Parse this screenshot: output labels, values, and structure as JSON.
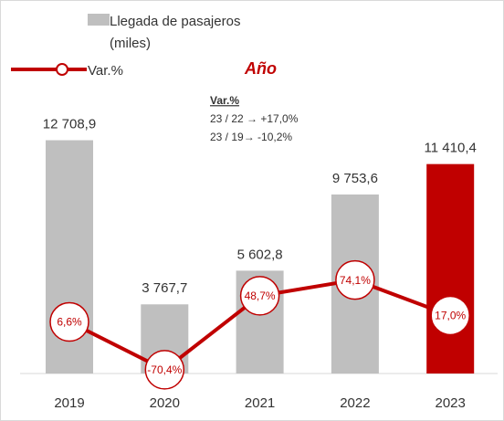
{
  "chart_data": {
    "type": "bar",
    "subtitle": "Año",
    "categories": [
      "2019",
      "2020",
      "2021",
      "2022",
      "2023"
    ],
    "series": [
      {
        "name": "Llegada de pasajeros (miles)",
        "type": "bar",
        "color": "#bfbfbf",
        "colors": [
          "#bfbfbf",
          "#bfbfbf",
          "#bfbfbf",
          "#bfbfbf",
          "#c00000"
        ],
        "values": [
          12708.9,
          3767.7,
          5602.8,
          9753.6,
          11410.4
        ],
        "value_labels": [
          "12 708,9",
          "3 767,7",
          "5 602,8",
          "9 753,6",
          "11 410,4"
        ]
      },
      {
        "name": "Var.%",
        "type": "line",
        "color": "#c00000",
        "values": [
          6.6,
          -70.4,
          48.7,
          74.1,
          17.0
        ],
        "value_labels": [
          "6,6%",
          "-70,4%",
          "48,7%",
          "74,1%",
          "17,0%"
        ]
      }
    ],
    "annotation": {
      "title": "Var.%",
      "lines": [
        "23 / 22 →  +17,0%",
        "23 / 19→  -10,2%"
      ]
    }
  }
}
